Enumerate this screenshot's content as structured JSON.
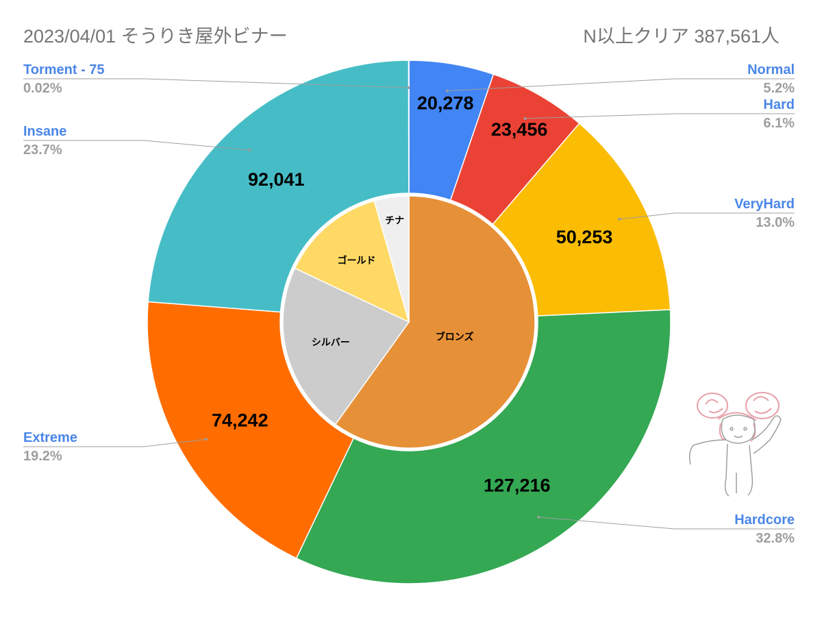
{
  "chart_data": {
    "type": "pie",
    "title": "2023/04/01 そうりき屋外ビナー",
    "subtitle": "N以上クリア  387,561人",
    "outer_ring": [
      {
        "name": "Normal",
        "value": 20278,
        "value_label": "20,278",
        "percent_label": "5.2%",
        "color": "#4285f4"
      },
      {
        "name": "Hard",
        "value": 23456,
        "value_label": "23,456",
        "percent_label": "6.1%",
        "color": "#ea4335"
      },
      {
        "name": "VeryHard",
        "value": 50253,
        "value_label": "50,253",
        "percent_label": "13.0%",
        "color": "#fbbc04"
      },
      {
        "name": "Hardcore",
        "value": 127216,
        "value_label": "127,216",
        "percent_label": "32.8%",
        "color": "#34a853"
      },
      {
        "name": "Extreme",
        "value": 74242,
        "value_label": "74,242",
        "percent_label": "19.2%",
        "color": "#ff6d01"
      },
      {
        "name": "Insane",
        "value": 92041,
        "value_label": "92,041",
        "percent_label": "23.7%",
        "color": "#46bdc6"
      },
      {
        "name": "Torment  - 75",
        "value": 75,
        "value_label": "",
        "percent_label": "0.02%",
        "color": "#7baaf7"
      }
    ],
    "inner_ring": [
      {
        "name": "ブロンズ",
        "percent": 52.6,
        "color": "#e69138"
      },
      {
        "name": "シルバー",
        "percent": 19.4,
        "color": "#cccccc"
      },
      {
        "name": "ゴールド",
        "percent": 11.9,
        "color": "#ffd966"
      },
      {
        "name": "チナ",
        "percent": 3.9,
        "color": "#efefef"
      }
    ]
  }
}
